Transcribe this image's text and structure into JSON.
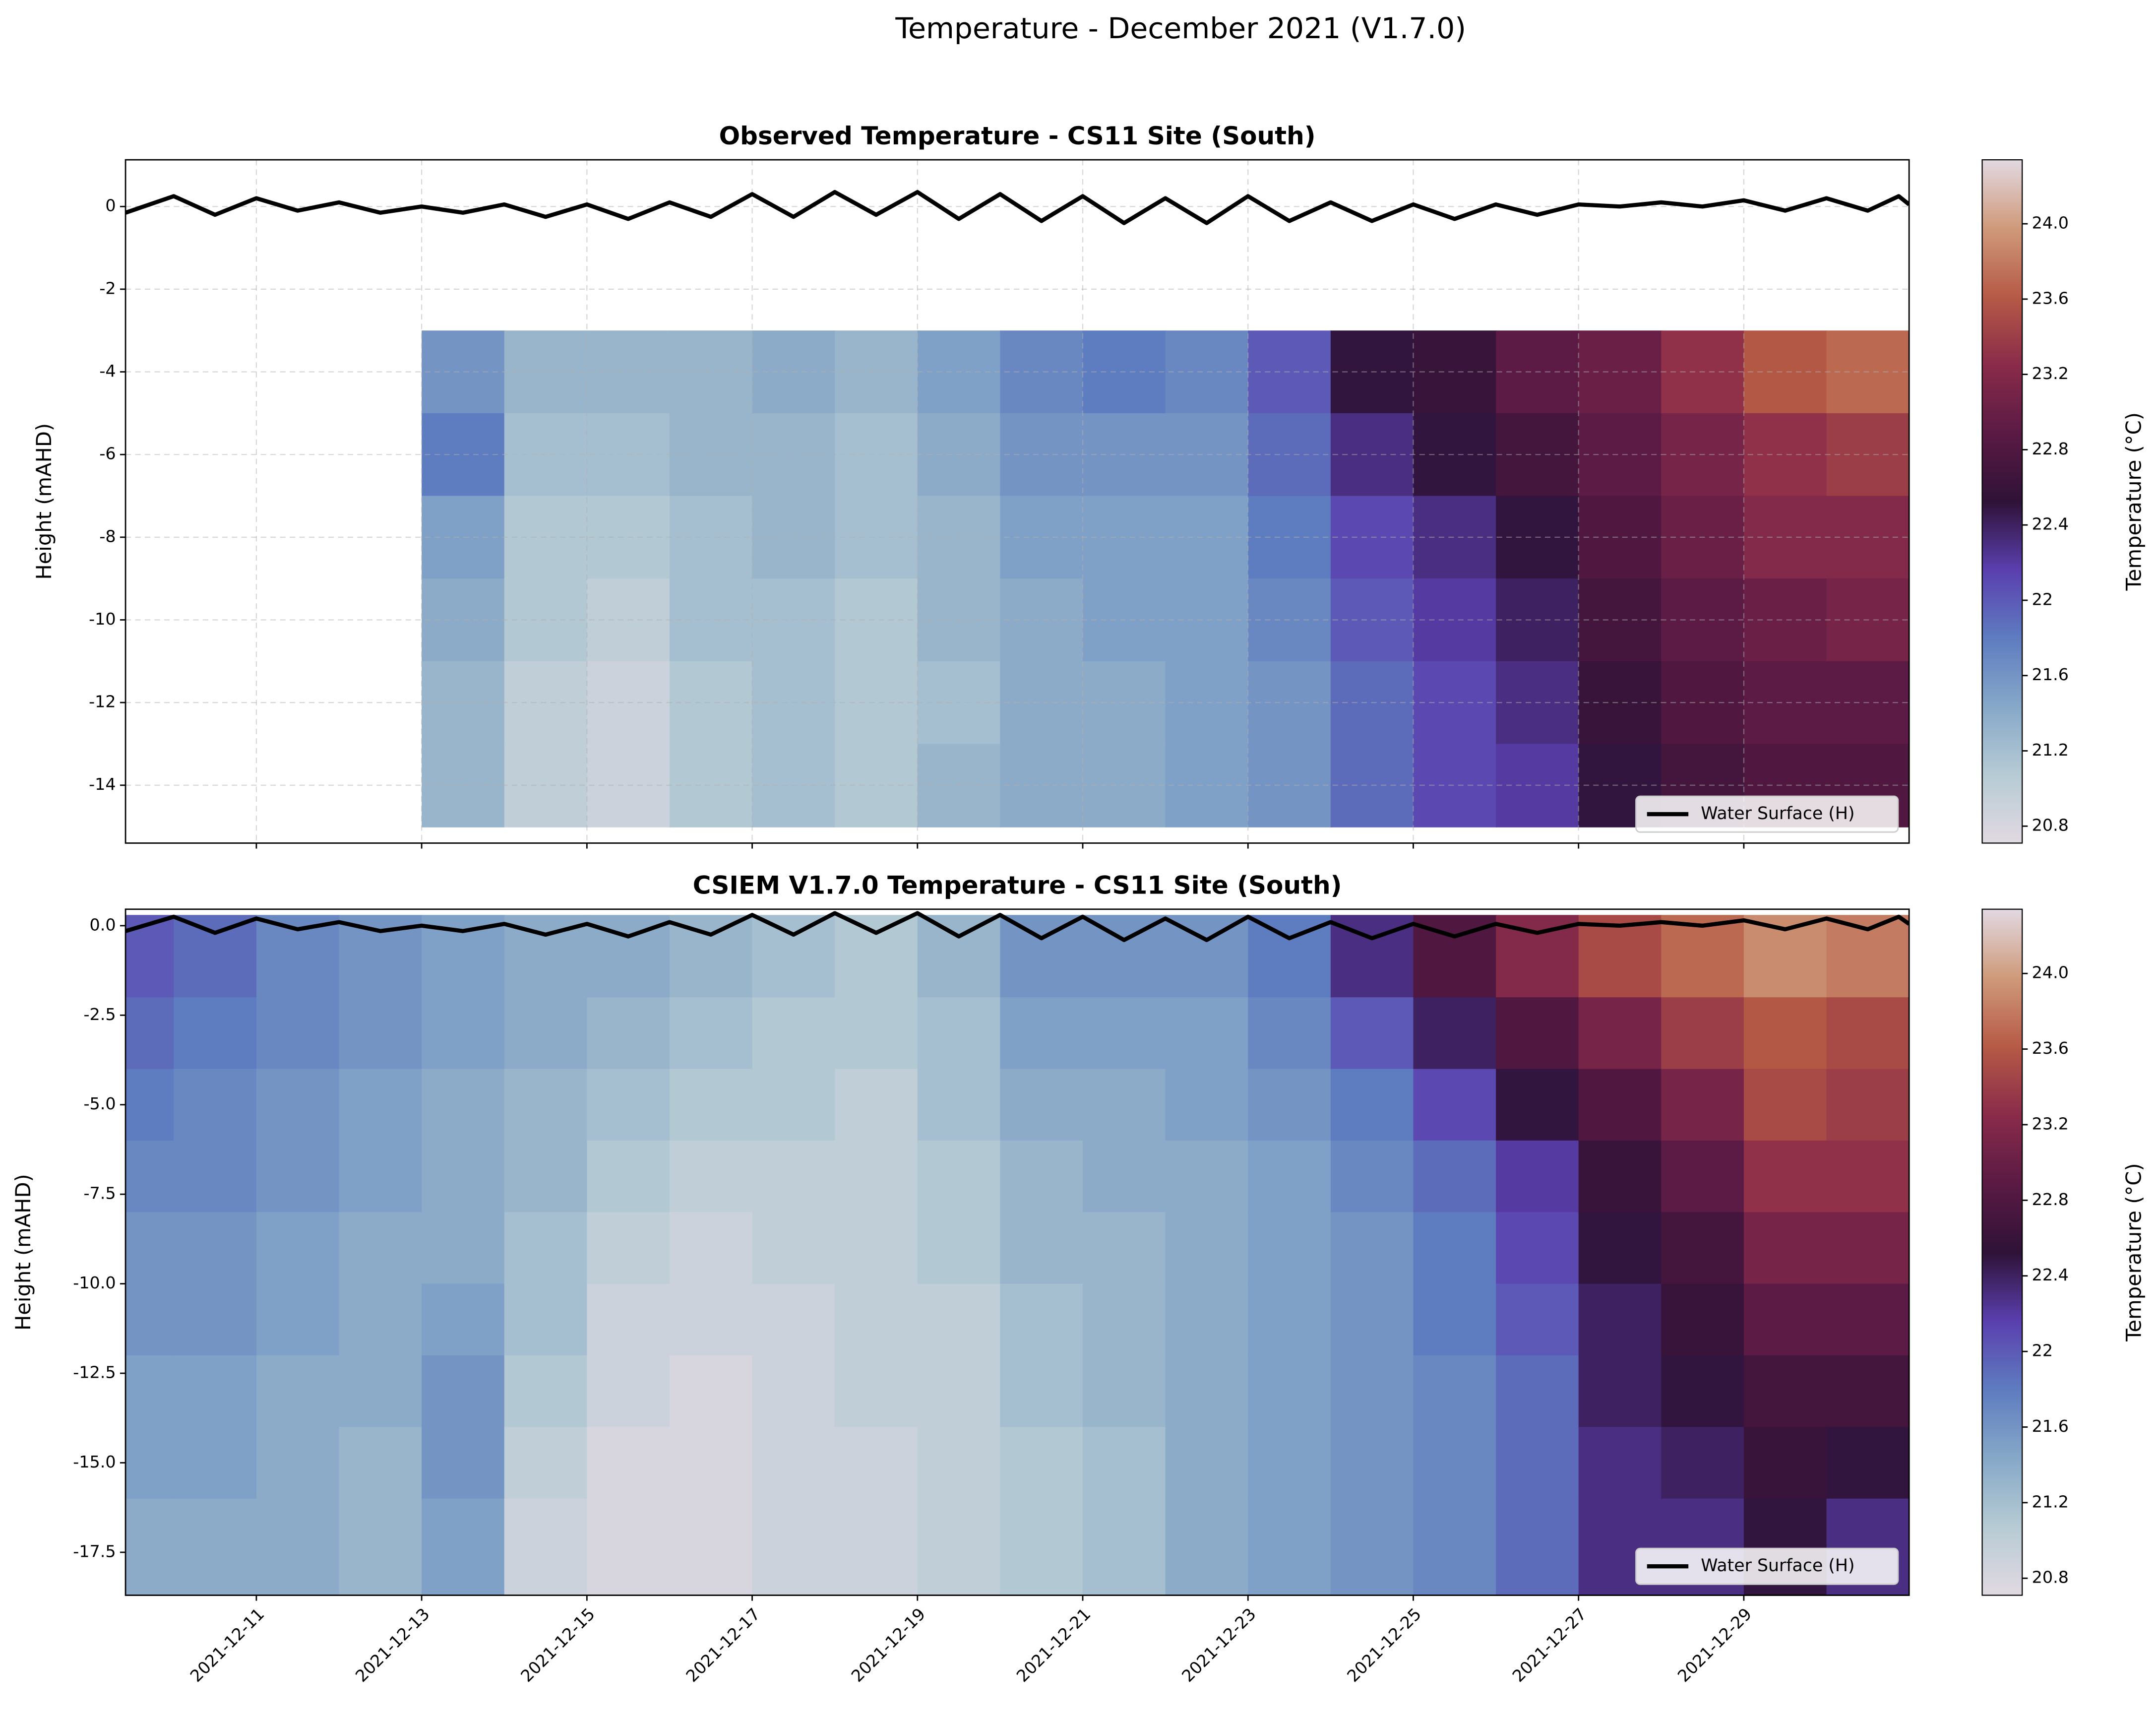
{
  "title": "Temperature - December 2021 (V1.7.0)",
  "chart_data": [
    {
      "type": "heatmap",
      "title": "Observed Temperature - CS11 Site (South)",
      "ylabel": "Height (mAHD)",
      "colorbar_label": "Temperature (°C)",
      "xlim": [
        "2021-12-09T10:00",
        "2021-12-31T00:00"
      ],
      "ylim": [
        -15.4,
        1.13
      ],
      "yticks": [
        0,
        -2,
        -4,
        -6,
        -8,
        -10,
        -12,
        -14
      ],
      "grid": true,
      "zlim": [
        20.71,
        24.34
      ],
      "colormap": [
        "#e2d9e2",
        "#b6cbd4",
        "#86a8c8",
        "#5e7cc0",
        "#5a3fae",
        "#2f1237",
        "#5a1a44",
        "#8a2b4a",
        "#b65a46",
        "#cf9a7a",
        "#e2d9e2"
      ],
      "zticks": [
        20.8,
        21.2,
        21.6,
        22.0,
        22.4,
        22.8,
        23.2,
        23.6,
        {
          "value": 24,
          "label": "24.0"
        }
      ],
      "x_edges": [
        "2021-12-09",
        "2021-12-10",
        "2021-12-11",
        "2021-12-12",
        "2021-12-13",
        "2021-12-14",
        "2021-12-15",
        "2021-12-16",
        "2021-12-17",
        "2021-12-18",
        "2021-12-19",
        "2021-12-20",
        "2021-12-21",
        "2021-12-22",
        "2021-12-23",
        "2021-12-24",
        "2021-12-25",
        "2021-12-26",
        "2021-12-27",
        "2021-12-28",
        "2021-12-29",
        "2021-12-30",
        "2021-12-31"
      ],
      "y_edges": [
        -3,
        -5,
        -7,
        -9,
        -11,
        -13,
        -15
      ],
      "z": [
        [
          null,
          null,
          null,
          null,
          null,
          null
        ],
        [
          null,
          null,
          null,
          null,
          null,
          null
        ],
        [
          null,
          null,
          null,
          null,
          null,
          null
        ],
        [
          null,
          null,
          null,
          null,
          null,
          null
        ],
        [
          21.6,
          21.8,
          21.5,
          21.4,
          21.3,
          21.3
        ],
        [
          21.3,
          21.2,
          21.1,
          21.1,
          21.0,
          21.0
        ],
        [
          21.3,
          21.2,
          21.1,
          21.0,
          20.9,
          20.9
        ],
        [
          21.3,
          21.3,
          21.2,
          21.2,
          21.1,
          21.1
        ],
        [
          21.4,
          21.3,
          21.3,
          21.2,
          21.2,
          21.2
        ],
        [
          21.3,
          21.2,
          21.2,
          21.1,
          21.1,
          21.1
        ],
        [
          21.5,
          21.4,
          21.3,
          21.3,
          21.2,
          21.3
        ],
        [
          21.7,
          21.6,
          21.5,
          21.4,
          21.4,
          21.4
        ],
        [
          21.8,
          21.6,
          21.5,
          21.5,
          21.4,
          21.4
        ],
        [
          21.7,
          21.6,
          21.5,
          21.5,
          21.5,
          21.5
        ],
        [
          22.0,
          21.9,
          21.8,
          21.7,
          21.6,
          21.6
        ],
        [
          22.5,
          22.3,
          22.1,
          22.0,
          21.9,
          21.9
        ],
        [
          22.6,
          22.5,
          22.3,
          22.2,
          22.1,
          22.1
        ],
        [
          22.9,
          22.7,
          22.5,
          22.4,
          22.3,
          22.2
        ],
        [
          23.0,
          22.9,
          22.8,
          22.7,
          22.6,
          22.5
        ],
        [
          23.3,
          23.1,
          23.0,
          22.9,
          22.8,
          22.7
        ],
        [
          23.6,
          23.3,
          23.2,
          23.0,
          22.9,
          22.8
        ],
        [
          23.7,
          23.4,
          23.2,
          23.1,
          22.9,
          22.8
        ]
      ],
      "series": [
        {
          "name": "Water Surface (H)",
          "color": "#000000",
          "x": [
            "2021-12-09T10:00",
            "2021-12-10T00:00",
            "2021-12-10T12:00",
            "2021-12-11T00:00",
            "2021-12-11T12:00",
            "2021-12-12T00:00",
            "2021-12-12T12:00",
            "2021-12-13T00:00",
            "2021-12-13T12:00",
            "2021-12-14T00:00",
            "2021-12-14T12:00",
            "2021-12-15T00:00",
            "2021-12-15T12:00",
            "2021-12-16T00:00",
            "2021-12-16T12:00",
            "2021-12-17T00:00",
            "2021-12-17T12:00",
            "2021-12-18T00:00",
            "2021-12-18T12:00",
            "2021-12-19T00:00",
            "2021-12-19T12:00",
            "2021-12-20T00:00",
            "2021-12-20T12:00",
            "2021-12-21T00:00",
            "2021-12-21T12:00",
            "2021-12-22T00:00",
            "2021-12-22T12:00",
            "2021-12-23T00:00",
            "2021-12-23T12:00",
            "2021-12-24T00:00",
            "2021-12-24T12:00",
            "2021-12-25T00:00",
            "2021-12-25T12:00",
            "2021-12-26T00:00",
            "2021-12-26T12:00",
            "2021-12-27T00:00",
            "2021-12-27T12:00",
            "2021-12-28T00:00",
            "2021-12-28T12:00",
            "2021-12-29T00:00",
            "2021-12-29T12:00",
            "2021-12-30T00:00",
            "2021-12-30T12:00",
            "2021-12-30T21:00",
            "2021-12-31T00:00"
          ],
          "values": [
            -0.15,
            0.25,
            -0.2,
            0.2,
            -0.1,
            0.1,
            -0.15,
            0.0,
            -0.15,
            0.05,
            -0.25,
            0.05,
            -0.3,
            0.1,
            -0.25,
            0.3,
            -0.25,
            0.35,
            -0.2,
            0.35,
            -0.3,
            0.3,
            -0.35,
            0.25,
            -0.4,
            0.2,
            -0.4,
            0.25,
            -0.35,
            0.1,
            -0.35,
            0.05,
            -0.3,
            0.05,
            -0.2,
            0.05,
            0.0,
            0.1,
            0.0,
            0.15,
            -0.1,
            0.2,
            -0.1,
            0.25,
            0.05
          ]
        }
      ],
      "legend": "lower right"
    },
    {
      "type": "heatmap",
      "title": "CSIEM V1.7.0 Temperature - CS11 Site (South)",
      "ylabel": "Height (mAHD)",
      "colorbar_label": "Temperature (°C)",
      "xlim": [
        "2021-12-09T10:00",
        "2021-12-31T00:00"
      ],
      "ylim": [
        -18.7,
        0.46
      ],
      "yticks": [
        {
          "value": 0,
          "label": "0.0"
        },
        -2.5,
        {
          "value": -5,
          "label": "-5.0"
        },
        -7.5,
        {
          "value": -10,
          "label": "-10.0"
        },
        -12.5,
        {
          "value": -15,
          "label": "-15.0"
        },
        -17.5
      ],
      "xticks": [
        "2021-12-11",
        "2021-12-13",
        "2021-12-15",
        "2021-12-17",
        "2021-12-19",
        "2021-12-21",
        "2021-12-23",
        "2021-12-25",
        "2021-12-27",
        "2021-12-29"
      ],
      "grid": false,
      "zlim": [
        20.71,
        24.34
      ],
      "colormap": [
        "#e2d9e2",
        "#b6cbd4",
        "#86a8c8",
        "#5e7cc0",
        "#5a3fae",
        "#2f1237",
        "#5a1a44",
        "#8a2b4a",
        "#b65a46",
        "#cf9a7a",
        "#e2d9e2"
      ],
      "zticks": [
        20.8,
        21.2,
        21.6,
        22.0,
        22.4,
        22.8,
        23.2,
        23.6,
        {
          "value": 24,
          "label": "24.0"
        }
      ],
      "x_edges": [
        "2021-12-09",
        "2021-12-10",
        "2021-12-11",
        "2021-12-12",
        "2021-12-13",
        "2021-12-14",
        "2021-12-15",
        "2021-12-16",
        "2021-12-17",
        "2021-12-18",
        "2021-12-19",
        "2021-12-20",
        "2021-12-21",
        "2021-12-22",
        "2021-12-23",
        "2021-12-24",
        "2021-12-25",
        "2021-12-26",
        "2021-12-27",
        "2021-12-28",
        "2021-12-29",
        "2021-12-30",
        "2021-12-31"
      ],
      "y_edges": [
        0.3,
        -2,
        -4,
        -6,
        -8,
        -10,
        -12,
        -14,
        -16,
        -18.7
      ],
      "z": [
        [
          22.0,
          21.9,
          21.8,
          21.7,
          21.6,
          21.6,
          21.5,
          21.5,
          21.4
        ],
        [
          21.9,
          21.8,
          21.7,
          21.7,
          21.6,
          21.6,
          21.5,
          21.5,
          21.4
        ],
        [
          21.7,
          21.7,
          21.6,
          21.6,
          21.5,
          21.5,
          21.4,
          21.4,
          21.4
        ],
        [
          21.6,
          21.6,
          21.5,
          21.5,
          21.4,
          21.4,
          21.4,
          21.3,
          21.3
        ],
        [
          21.5,
          21.5,
          21.4,
          21.4,
          21.4,
          21.5,
          21.6,
          21.6,
          21.5
        ],
        [
          21.4,
          21.4,
          21.3,
          21.3,
          21.2,
          21.2,
          21.1,
          21.0,
          20.9
        ],
        [
          21.4,
          21.3,
          21.2,
          21.1,
          21.0,
          20.9,
          20.9,
          20.8,
          20.8
        ],
        [
          21.3,
          21.2,
          21.1,
          21.0,
          20.9,
          20.9,
          20.8,
          20.8,
          20.8
        ],
        [
          21.2,
          21.1,
          21.1,
          21.0,
          21.0,
          20.9,
          20.9,
          20.9,
          20.9
        ],
        [
          21.1,
          21.1,
          21.0,
          21.0,
          21.0,
          21.0,
          21.0,
          20.9,
          20.9
        ],
        [
          21.3,
          21.2,
          21.2,
          21.1,
          21.1,
          21.0,
          21.0,
          21.0,
          21.0
        ],
        [
          21.6,
          21.5,
          21.4,
          21.3,
          21.3,
          21.2,
          21.2,
          21.1,
          21.1
        ],
        [
          21.6,
          21.5,
          21.4,
          21.4,
          21.3,
          21.3,
          21.3,
          21.2,
          21.2
        ],
        [
          21.6,
          21.5,
          21.5,
          21.4,
          21.4,
          21.4,
          21.4,
          21.4,
          21.4
        ],
        [
          21.8,
          21.7,
          21.6,
          21.5,
          21.5,
          21.5,
          21.5,
          21.5,
          21.5
        ],
        [
          22.3,
          22.0,
          21.8,
          21.7,
          21.6,
          21.6,
          21.6,
          21.6,
          21.6
        ],
        [
          22.8,
          22.4,
          22.1,
          21.9,
          21.8,
          21.8,
          21.7,
          21.7,
          21.7
        ],
        [
          23.2,
          22.8,
          22.5,
          22.2,
          22.1,
          22.0,
          21.9,
          21.9,
          21.9
        ],
        [
          23.5,
          23.1,
          22.8,
          22.6,
          22.5,
          22.4,
          22.4,
          22.3,
          22.3
        ],
        [
          23.7,
          23.4,
          23.1,
          22.9,
          22.7,
          22.6,
          22.5,
          22.4,
          22.3
        ],
        [
          23.9,
          23.6,
          23.5,
          23.3,
          23.1,
          22.9,
          22.7,
          22.6,
          22.5
        ],
        [
          23.8,
          23.5,
          23.4,
          23.3,
          23.1,
          22.9,
          22.7,
          22.5,
          22.3
        ]
      ],
      "series": [
        {
          "name": "Water Surface (H)",
          "color": "#000000",
          "x": [
            "2021-12-09T10:00",
            "2021-12-10T00:00",
            "2021-12-10T12:00",
            "2021-12-11T00:00",
            "2021-12-11T12:00",
            "2021-12-12T00:00",
            "2021-12-12T12:00",
            "2021-12-13T00:00",
            "2021-12-13T12:00",
            "2021-12-14T00:00",
            "2021-12-14T12:00",
            "2021-12-15T00:00",
            "2021-12-15T12:00",
            "2021-12-16T00:00",
            "2021-12-16T12:00",
            "2021-12-17T00:00",
            "2021-12-17T12:00",
            "2021-12-18T00:00",
            "2021-12-18T12:00",
            "2021-12-19T00:00",
            "2021-12-19T12:00",
            "2021-12-20T00:00",
            "2021-12-20T12:00",
            "2021-12-21T00:00",
            "2021-12-21T12:00",
            "2021-12-22T00:00",
            "2021-12-22T12:00",
            "2021-12-23T00:00",
            "2021-12-23T12:00",
            "2021-12-24T00:00",
            "2021-12-24T12:00",
            "2021-12-25T00:00",
            "2021-12-25T12:00",
            "2021-12-26T00:00",
            "2021-12-26T12:00",
            "2021-12-27T00:00",
            "2021-12-27T12:00",
            "2021-12-28T00:00",
            "2021-12-28T12:00",
            "2021-12-29T00:00",
            "2021-12-29T12:00",
            "2021-12-30T00:00",
            "2021-12-30T12:00",
            "2021-12-30T21:00",
            "2021-12-31T00:00"
          ],
          "values": [
            -0.15,
            0.25,
            -0.2,
            0.2,
            -0.1,
            0.1,
            -0.15,
            0.0,
            -0.15,
            0.05,
            -0.25,
            0.05,
            -0.3,
            0.1,
            -0.25,
            0.3,
            -0.25,
            0.35,
            -0.2,
            0.35,
            -0.3,
            0.3,
            -0.35,
            0.25,
            -0.4,
            0.2,
            -0.4,
            0.25,
            -0.35,
            0.1,
            -0.35,
            0.05,
            -0.3,
            0.05,
            -0.2,
            0.05,
            0.0,
            0.1,
            0.0,
            0.15,
            -0.1,
            0.2,
            -0.1,
            0.25,
            0.05
          ]
        }
      ],
      "legend": "lower right"
    }
  ]
}
